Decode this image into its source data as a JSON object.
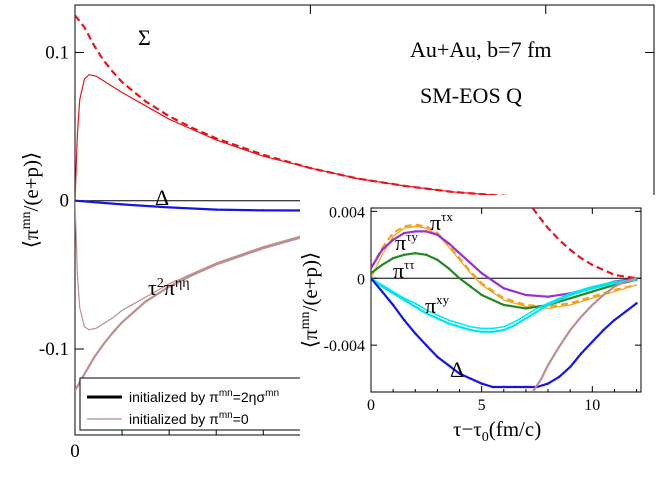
{
  "chart_data": [
    {
      "type": "line",
      "panel": "main",
      "xlabel": "τ−τ0(fm/c)",
      "ylabel": "⟨πmn/(e+p)⟩",
      "xlim": [
        0,
        12.3
      ],
      "ylim": [
        -0.158,
        0.132
      ],
      "xticks": [
        0,
        5,
        10
      ],
      "yticks": [
        0.1,
        0,
        -0.1
      ],
      "ytick_labels": [
        "0.1",
        "0",
        "-0.1"
      ],
      "zero_line": true,
      "annotations": [
        "Au+Au, b=7 fm",
        "SM-EOS Q",
        "Σ",
        "Δ",
        "τ2πηη"
      ],
      "legend": {
        "placement": "bottom-left",
        "entries": [
          {
            "label": "initialized by πmn=2ησmn",
            "style": "thick"
          },
          {
            "label": "initialized by πmn=0",
            "style": "thin"
          }
        ]
      },
      "series": [
        {
          "name": "Σ",
          "init": "NS",
          "color": "#e8141c",
          "x": [
            0,
            0.2,
            0.4,
            0.6,
            0.8,
            1.0,
            1.5,
            2,
            2.5,
            3,
            4,
            5,
            6,
            7,
            8,
            9,
            10,
            11,
            12.3
          ],
          "y": [
            0.125,
            0.117,
            0.105,
            0.095,
            0.087,
            0.08,
            0.067,
            0.057,
            0.049,
            0.042,
            0.031,
            0.022,
            0.015,
            0.01,
            0.006,
            0.0035,
            0.0018,
            0.0008,
            0
          ]
        },
        {
          "name": "Σ",
          "init": "zero",
          "color": "#e8141c",
          "x": [
            0,
            0.05,
            0.1,
            0.2,
            0.3,
            0.45,
            0.6,
            0.8,
            1.0,
            1.5,
            2,
            2.5,
            3,
            4,
            5,
            6,
            7,
            8,
            9,
            10,
            11,
            12.3
          ],
          "y": [
            0,
            0.045,
            0.068,
            0.082,
            0.085,
            0.084,
            0.081,
            0.077,
            0.073,
            0.064,
            0.055,
            0.048,
            0.041,
            0.03,
            0.022,
            0.015,
            0.01,
            0.006,
            0.0035,
            0.0018,
            0.0008,
            0
          ]
        },
        {
          "name": "τ2πηη",
          "init": "NS",
          "color": "#bc8f8f",
          "x": [
            0,
            0.2,
            0.4,
            0.6,
            0.8,
            1.0,
            1.5,
            2,
            2.5,
            3,
            4,
            5,
            6,
            7,
            8,
            9,
            10,
            11,
            12.3
          ],
          "y": [
            -0.128,
            -0.117,
            -0.106,
            -0.097,
            -0.089,
            -0.082,
            -0.068,
            -0.058,
            -0.05,
            -0.043,
            -0.032,
            -0.023,
            -0.016,
            -0.011,
            -0.007,
            -0.004,
            -0.002,
            -0.0008,
            0
          ]
        },
        {
          "name": "τ2πηη",
          "init": "zero",
          "color": "#bc8f8f",
          "x": [
            0,
            0.05,
            0.1,
            0.2,
            0.3,
            0.45,
            0.6,
            0.8,
            1.0,
            1.5,
            2,
            2.5,
            3,
            4,
            5,
            6,
            7,
            8,
            9,
            10,
            11,
            12.3
          ],
          "y": [
            0,
            -0.05,
            -0.072,
            -0.085,
            -0.087,
            -0.086,
            -0.083,
            -0.079,
            -0.074,
            -0.065,
            -0.056,
            -0.049,
            -0.042,
            -0.031,
            -0.022,
            -0.016,
            -0.011,
            -0.007,
            -0.004,
            -0.002,
            -0.0008,
            0
          ]
        },
        {
          "name": "Δ",
          "init": "NS",
          "color": "#1414e6",
          "x": [
            0,
            1,
            2,
            3,
            4,
            5,
            6,
            7,
            8,
            9,
            10,
            11,
            12.3
          ],
          "y": [
            0,
            -0.0025,
            -0.0045,
            -0.006,
            -0.0065,
            -0.0066,
            -0.0065,
            -0.0058,
            -0.0048,
            -0.0036,
            -0.0024,
            -0.0012,
            0
          ]
        }
      ]
    },
    {
      "type": "line",
      "panel": "inset",
      "xlabel": "τ−τ0(fm/c)",
      "ylabel": "⟨πmn/(e+p)⟩",
      "xlim": [
        0,
        12.2
      ],
      "ylim": [
        -0.0068,
        0.0042
      ],
      "xticks": [
        0,
        5,
        10
      ],
      "yticks": [
        0.004,
        0,
        -0.004
      ],
      "ytick_labels": [
        "0.004",
        "0",
        "-0.004"
      ],
      "zero_line": true,
      "annotations": [
        "πτx",
        "πτy",
        "πττ",
        "πxy",
        "Δ"
      ],
      "series": [
        {
          "name": "πτx",
          "init": "NS",
          "color": "#f5a21c",
          "x": [
            0,
            0.5,
            1,
            1.5,
            2,
            2.5,
            3,
            3.5,
            4,
            4.5,
            5,
            6,
            7,
            8,
            9,
            10,
            11,
            12
          ],
          "y": [
            0.0006,
            0.0018,
            0.0027,
            0.0031,
            0.0032,
            0.0031,
            0.0027,
            0.002,
            0.0012,
            0.0004,
            -0.0003,
            -0.0012,
            -0.0016,
            -0.0017,
            -0.0015,
            -0.0011,
            -0.0007,
            -0.0004
          ]
        },
        {
          "name": "πτx",
          "init": "zero",
          "color": "#f5a21c",
          "x": [
            0,
            0.5,
            1,
            1.5,
            2,
            2.5,
            3,
            3.5,
            4,
            4.5,
            5,
            6,
            7,
            8,
            9,
            10,
            11,
            12
          ],
          "y": [
            0,
            0.0014,
            0.0025,
            0.003,
            0.0031,
            0.003,
            0.0026,
            0.0019,
            0.0011,
            0.0003,
            -0.0004,
            -0.0013,
            -0.0017,
            -0.0018,
            -0.0016,
            -0.0012,
            -0.0008,
            -0.0004
          ]
        },
        {
          "name": "πτy",
          "init": "NS",
          "color": "#9932cc",
          "x": [
            0,
            0.5,
            1,
            1.5,
            2,
            2.5,
            3,
            3.5,
            4,
            4.5,
            5,
            6,
            7,
            8,
            9,
            10,
            11,
            12
          ],
          "y": [
            0.0006,
            0.0017,
            0.0023,
            0.0027,
            0.0028,
            0.0028,
            0.0026,
            0.0021,
            0.0015,
            0.0009,
            0.0003,
            -0.0006,
            -0.001,
            -0.0011,
            -0.0009,
            -0.0006,
            -0.0002,
            0
          ]
        },
        {
          "name": "πττ",
          "init": "NS",
          "color": "#208a20",
          "x": [
            0,
            0.5,
            1,
            1.5,
            2,
            2.5,
            3,
            3.5,
            4,
            4.5,
            5,
            6,
            7,
            8,
            9,
            10,
            11,
            12
          ],
          "y": [
            0.0003,
            0.0008,
            0.0012,
            0.0014,
            0.0015,
            0.0014,
            0.0011,
            0.0006,
            0,
            -0.0005,
            -0.001,
            -0.0016,
            -0.0018,
            -0.0016,
            -0.0012,
            -0.0008,
            -0.0004,
            -0.0001
          ]
        },
        {
          "name": "πxy",
          "init": "NS",
          "color": "#00e6f0",
          "x": [
            0,
            0.5,
            1,
            1.5,
            2,
            2.5,
            3,
            3.5,
            4,
            4.5,
            5,
            5.5,
            6,
            6.5,
            7,
            7.5,
            8,
            9,
            10,
            11,
            12
          ],
          "y": [
            0,
            -0.0005,
            -0.0009,
            -0.0013,
            -0.0017,
            -0.0021,
            -0.0024,
            -0.0027,
            -0.0029,
            -0.0031,
            -0.0032,
            -0.0032,
            -0.0031,
            -0.0028,
            -0.0024,
            -0.002,
            -0.0016,
            -0.001,
            -0.0006,
            -0.0003,
            -0.0001
          ]
        },
        {
          "name": "πxy",
          "init": "zero",
          "color": "#00e6f0",
          "x": [
            0,
            0.5,
            1,
            1.5,
            2,
            2.5,
            3,
            3.5,
            4,
            4.5,
            5,
            5.5,
            6,
            6.5,
            7,
            7.5,
            8,
            9,
            10,
            11,
            12
          ],
          "y": [
            0,
            -0.0004,
            -0.0008,
            -0.0012,
            -0.0015,
            -0.0019,
            -0.0022,
            -0.0025,
            -0.0027,
            -0.0029,
            -0.003,
            -0.003,
            -0.0029,
            -0.0026,
            -0.0022,
            -0.0018,
            -0.0015,
            -0.0009,
            -0.0005,
            -0.0002,
            -0.0001
          ]
        },
        {
          "name": "Δ",
          "init": "NS",
          "color": "#1414e6",
          "x": [
            0,
            0.5,
            1,
            1.5,
            2,
            2.5,
            3,
            3.5,
            4,
            4.5,
            5,
            5.5,
            6,
            6.5,
            7,
            7.5,
            8,
            8.5,
            9,
            9.5,
            10,
            10.5,
            11,
            11.5,
            12
          ],
          "y": [
            0,
            -0.0008,
            -0.0016,
            -0.0025,
            -0.0033,
            -0.004,
            -0.0047,
            -0.0052,
            -0.0057,
            -0.006,
            -0.0063,
            -0.0065,
            -0.0065,
            -0.0065,
            -0.0065,
            -0.0065,
            -0.0063,
            -0.0059,
            -0.0053,
            -0.0045,
            -0.0038,
            -0.0031,
            -0.0025,
            -0.002,
            -0.0015
          ]
        },
        {
          "name": "Σ",
          "init": "NS",
          "color": "#e8141c",
          "x": [
            7.3,
            7.7,
            8,
            8.5,
            9,
            9.5,
            10,
            10.5,
            11,
            11.5,
            12
          ],
          "y": [
            0.0042,
            0.0035,
            0.003,
            0.0023,
            0.0017,
            0.0012,
            0.0008,
            0.0005,
            0.0002,
            0.0001,
            0
          ]
        },
        {
          "name": "τ2πηη",
          "init": "NS",
          "color": "#bc8f8f",
          "x": [
            7.3,
            7.7,
            8,
            8.5,
            9,
            9.5,
            10,
            10.5,
            11,
            11.5,
            12
          ],
          "y": [
            -0.0068,
            -0.006,
            -0.0052,
            -0.0041,
            -0.0031,
            -0.0023,
            -0.0016,
            -0.001,
            -0.0005,
            -0.0002,
            0
          ]
        }
      ]
    }
  ]
}
